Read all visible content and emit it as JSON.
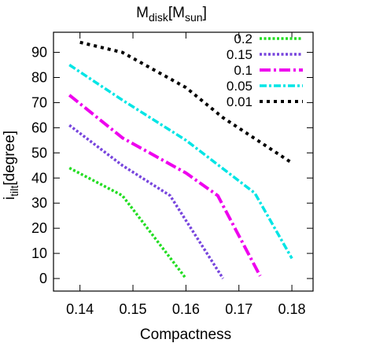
{
  "chart_data": {
    "type": "line",
    "title_main": "M",
    "title_sub1": "disk",
    "title_mid": "[M",
    "title_sub2": "sun",
    "title_end": "]",
    "xlabel": "Compactness",
    "ylabel_main": "i",
    "ylabel_sub": "tilt",
    "ylabel_end": "[degree]",
    "xlim": [
      0.135,
      0.184
    ],
    "ylim": [
      -5,
      98
    ],
    "xticks": [
      0.14,
      0.15,
      0.16,
      0.17,
      0.18
    ],
    "xtick_labels": [
      "0.14",
      "0.15",
      "0.16",
      "0.17",
      "0.18"
    ],
    "yticks": [
      0,
      10,
      20,
      30,
      40,
      50,
      60,
      70,
      80,
      90
    ],
    "ytick_labels": [
      "0",
      "10",
      "20",
      "30",
      "40",
      "50",
      "60",
      "70",
      "80",
      "90"
    ],
    "legend_position": "top-right",
    "series": [
      {
        "name": "0.2",
        "color": "#22dd22",
        "style": "dotted",
        "x": [
          0.138,
          0.148,
          0.16
        ],
        "y": [
          44,
          33,
          0
        ]
      },
      {
        "name": "0.15",
        "color": "#7744dd",
        "style": "dotted",
        "x": [
          0.138,
          0.148,
          0.157,
          0.167
        ],
        "y": [
          61,
          45,
          33,
          0
        ]
      },
      {
        "name": "0.1",
        "color": "#ee00ee",
        "style": "dashdot",
        "x": [
          0.138,
          0.148,
          0.16,
          0.166,
          0.174
        ],
        "y": [
          73,
          56,
          42,
          33,
          1
        ]
      },
      {
        "name": "0.05",
        "color": "#00e5e5",
        "style": "dashdot-fine",
        "x": [
          0.138,
          0.148,
          0.16,
          0.173,
          0.18
        ],
        "y": [
          85,
          71,
          55,
          34,
          8
        ]
      },
      {
        "name": "0.01",
        "color": "#000000",
        "style": "dotted-black",
        "x": [
          0.14,
          0.148,
          0.16,
          0.167,
          0.18
        ],
        "y": [
          94,
          90,
          76,
          64,
          46
        ]
      }
    ]
  }
}
